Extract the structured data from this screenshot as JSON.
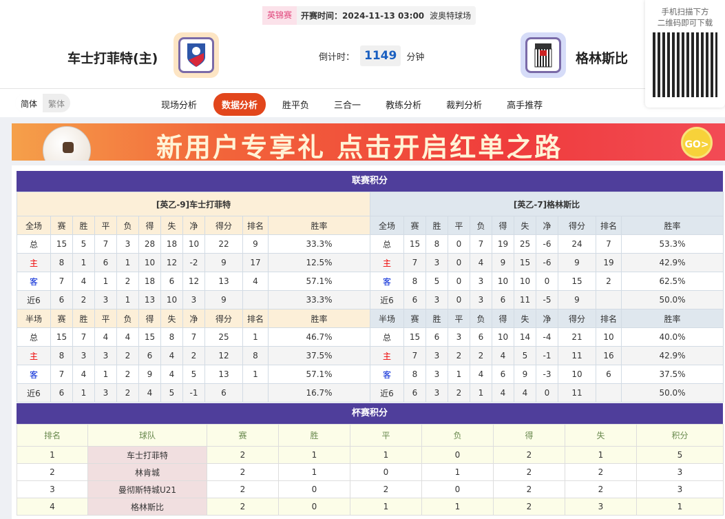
{
  "match": {
    "league": "英锦赛",
    "time": "开赛时间：2024-11-13 03:00",
    "venue": "波奥特球场",
    "home": "车士打菲特(主)",
    "away": "格林斯比",
    "countdown_label": "倒计时：",
    "countdown": "1149",
    "countdown_unit": "分钟"
  },
  "qr": {
    "line1": "手机扫描下方",
    "line2": "二维码即可下载"
  },
  "lang": {
    "simplified": "简体",
    "traditional": "繁体"
  },
  "tabs": [
    {
      "label": "现场分析"
    },
    {
      "label": "数据分析",
      "active": true
    },
    {
      "label": "胜平负"
    },
    {
      "label": "三合一"
    },
    {
      "label": "教练分析"
    },
    {
      "label": "裁判分析"
    },
    {
      "label": "高手推荐"
    }
  ],
  "banner": {
    "text": "新用户专享礼  点击开启红单之路",
    "go": "GO>"
  },
  "league_title": "联赛积分",
  "cols": [
    "赛",
    "胜",
    "平",
    "负",
    "得",
    "失",
    "净",
    "得分",
    "排名",
    "胜率"
  ],
  "full_label": "全场",
  "half_label": "半场",
  "home_table": {
    "name": "[英乙-9]车士打菲特",
    "full": [
      [
        "总",
        "15",
        "5",
        "7",
        "3",
        "28",
        "18",
        "10",
        "22",
        "9",
        "33.3%"
      ],
      [
        "主",
        "8",
        "1",
        "6",
        "1",
        "10",
        "12",
        "-2",
        "9",
        "17",
        "12.5%"
      ],
      [
        "客",
        "7",
        "4",
        "1",
        "2",
        "18",
        "6",
        "12",
        "13",
        "4",
        "57.1%"
      ],
      [
        "近6",
        "6",
        "2",
        "3",
        "1",
        "13",
        "10",
        "3",
        "9",
        "",
        "33.3%"
      ]
    ],
    "half": [
      [
        "总",
        "15",
        "7",
        "4",
        "4",
        "15",
        "8",
        "7",
        "25",
        "1",
        "46.7%"
      ],
      [
        "主",
        "8",
        "3",
        "3",
        "2",
        "6",
        "4",
        "2",
        "12",
        "8",
        "37.5%"
      ],
      [
        "客",
        "7",
        "4",
        "1",
        "2",
        "9",
        "4",
        "5",
        "13",
        "1",
        "57.1%"
      ],
      [
        "近6",
        "6",
        "1",
        "3",
        "2",
        "4",
        "5",
        "-1",
        "6",
        "",
        "16.7%"
      ]
    ]
  },
  "away_table": {
    "name": "[英乙-7]格林斯比",
    "full": [
      [
        "总",
        "15",
        "8",
        "0",
        "7",
        "19",
        "25",
        "-6",
        "24",
        "7",
        "53.3%"
      ],
      [
        "主",
        "7",
        "3",
        "0",
        "4",
        "9",
        "15",
        "-6",
        "9",
        "19",
        "42.9%"
      ],
      [
        "客",
        "8",
        "5",
        "0",
        "3",
        "10",
        "10",
        "0",
        "15",
        "2",
        "62.5%"
      ],
      [
        "近6",
        "6",
        "3",
        "0",
        "3",
        "6",
        "11",
        "-5",
        "9",
        "",
        "50.0%"
      ]
    ],
    "half": [
      [
        "总",
        "15",
        "6",
        "3",
        "6",
        "10",
        "14",
        "-4",
        "21",
        "10",
        "40.0%"
      ],
      [
        "主",
        "7",
        "3",
        "2",
        "2",
        "4",
        "5",
        "-1",
        "11",
        "16",
        "42.9%"
      ],
      [
        "客",
        "8",
        "3",
        "1",
        "4",
        "6",
        "9",
        "-3",
        "10",
        "6",
        "37.5%"
      ],
      [
        "近6",
        "6",
        "3",
        "2",
        "1",
        "4",
        "4",
        "0",
        "11",
        "",
        "50.0%"
      ]
    ]
  },
  "cup": {
    "title": "杯赛积分",
    "cols": [
      "排名",
      "球队",
      "赛",
      "胜",
      "平",
      "负",
      "得",
      "失",
      "积分"
    ],
    "rows": [
      [
        "1",
        "车士打菲特",
        "2",
        "1",
        "1",
        "0",
        "2",
        "1",
        "5"
      ],
      [
        "2",
        "林肯城",
        "2",
        "1",
        "0",
        "1",
        "2",
        "2",
        "3"
      ],
      [
        "3",
        "曼彻斯特城U21",
        "2",
        "0",
        "2",
        "0",
        "2",
        "2",
        "3"
      ],
      [
        "4",
        "格林斯比",
        "2",
        "0",
        "1",
        "1",
        "2",
        "3",
        "1"
      ]
    ]
  },
  "colors": {
    "title_bar": "#4f3e9b",
    "active_tab": "#e2461c",
    "home_label": "#ee0000",
    "away_label": "#0024d6"
  }
}
